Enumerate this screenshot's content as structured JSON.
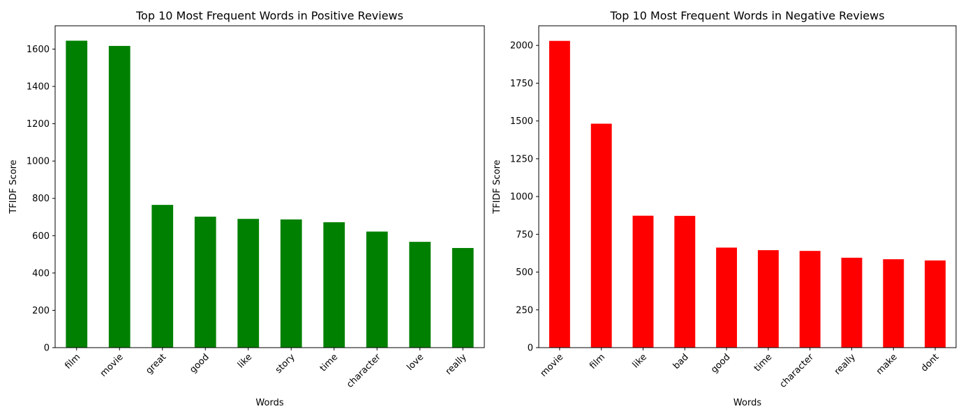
{
  "chart_data": [
    {
      "type": "bar",
      "title": "Top 10 Most Frequent Words in Positive Reviews",
      "xlabel": "Words",
      "ylabel": "TFIDF Score",
      "categories": [
        "film",
        "movie",
        "great",
        "good",
        "like",
        "story",
        "time",
        "character",
        "love",
        "really"
      ],
      "values": [
        1645,
        1617,
        765,
        702,
        690,
        687,
        672,
        622,
        567,
        534
      ],
      "ylim": [
        0,
        1725
      ],
      "yticks": [
        0,
        200,
        400,
        600,
        800,
        1000,
        1200,
        1400,
        1600
      ],
      "color": "#008000",
      "grid": false
    },
    {
      "type": "bar",
      "title": "Top 10 Most Frequent Words in Negative Reviews",
      "xlabel": "Words",
      "ylabel": "TFIDF Score",
      "categories": [
        "movie",
        "film",
        "like",
        "bad",
        "good",
        "time",
        "character",
        "really",
        "make",
        "dont"
      ],
      "values": [
        2030,
        1482,
        873,
        872,
        662,
        645,
        640,
        595,
        585,
        577
      ],
      "ylim": [
        0,
        2130
      ],
      "yticks": [
        0,
        250,
        500,
        750,
        1000,
        1250,
        1500,
        1750,
        2000
      ],
      "color": "#ff0000",
      "grid": false
    }
  ]
}
